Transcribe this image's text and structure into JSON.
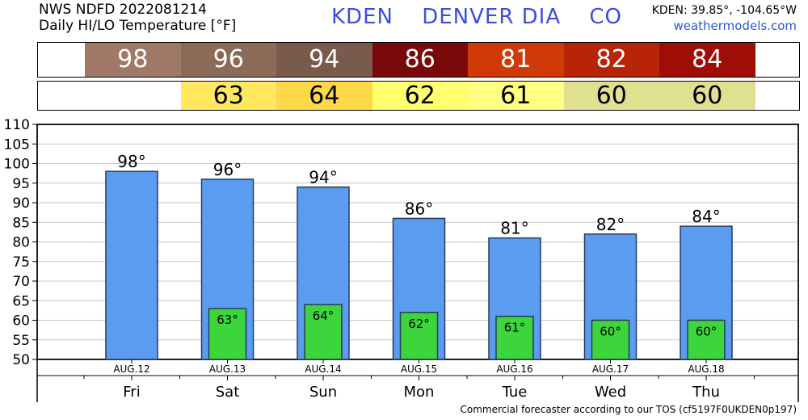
{
  "header": {
    "line1": "NWS NDFD 2022081214",
    "line2": "Daily HI/LO Temperature [°F]",
    "station": "KDEN",
    "name": "DENVER DIA",
    "state": "CO",
    "coords": "KDEN: 39.85°, -104.65°W",
    "site": "weathermodels.com"
  },
  "hi_strip": [
    {
      "value": "98",
      "color": "#a07868",
      "text_color": "#ffffff"
    },
    {
      "value": "96",
      "color": "#8b6b58",
      "text_color": "#ffffff"
    },
    {
      "value": "94",
      "color": "#7a5a4c",
      "text_color": "#ffffff"
    },
    {
      "value": "86",
      "color": "#7a0a0a",
      "text_color": "#ffffff"
    },
    {
      "value": "81",
      "color": "#cf3a08",
      "text_color": "#ffffff"
    },
    {
      "value": "82",
      "color": "#b82408",
      "text_color": "#ffffff"
    },
    {
      "value": "84",
      "color": "#9e0e06",
      "text_color": "#ffffff"
    }
  ],
  "lo_strip": [
    {
      "value": "",
      "color": "#ffffff",
      "text_color": "#000000"
    },
    {
      "value": "63",
      "color": "#ffe860",
      "text_color": "#000000"
    },
    {
      "value": "64",
      "color": "#ffd84a",
      "text_color": "#000000"
    },
    {
      "value": "62",
      "color": "#ffff70",
      "text_color": "#000000"
    },
    {
      "value": "61",
      "color": "#ffff80",
      "text_color": "#000000"
    },
    {
      "value": "60",
      "color": "#e0e090",
      "text_color": "#000000"
    },
    {
      "value": "60",
      "color": "#e0e090",
      "text_color": "#000000"
    }
  ],
  "chart_data": {
    "type": "bar",
    "categories": [
      "Fri",
      "Sat",
      "Sun",
      "Mon",
      "Tue",
      "Wed",
      "Thu"
    ],
    "dates": [
      "AUG.12",
      "AUG.13",
      "AUG.14",
      "AUG.15",
      "AUG.16",
      "AUG.17",
      "AUG.18"
    ],
    "series": [
      {
        "values": [
          98,
          96,
          94,
          86,
          81,
          82,
          84
        ],
        "color": "#5a9cf0"
      },
      {
        "values": [
          null,
          63,
          64,
          62,
          61,
          60,
          60
        ],
        "color": "#3cd63c"
      }
    ],
    "hi_labels": [
      "98°",
      "96°",
      "94°",
      "86°",
      "81°",
      "82°",
      "84°"
    ],
    "lo_labels": [
      "",
      "63°",
      "64°",
      "62°",
      "61°",
      "60°",
      "60°"
    ],
    "ylim": [
      50,
      110
    ],
    "yticks": [
      "50",
      "55",
      "60",
      "65",
      "70",
      "75",
      "80",
      "85",
      "90",
      "95",
      "100",
      "105",
      "110"
    ],
    "grid": true
  },
  "footer": "Commercial forecaster according to our TOS (cf5197F0UKDEN0p197)"
}
